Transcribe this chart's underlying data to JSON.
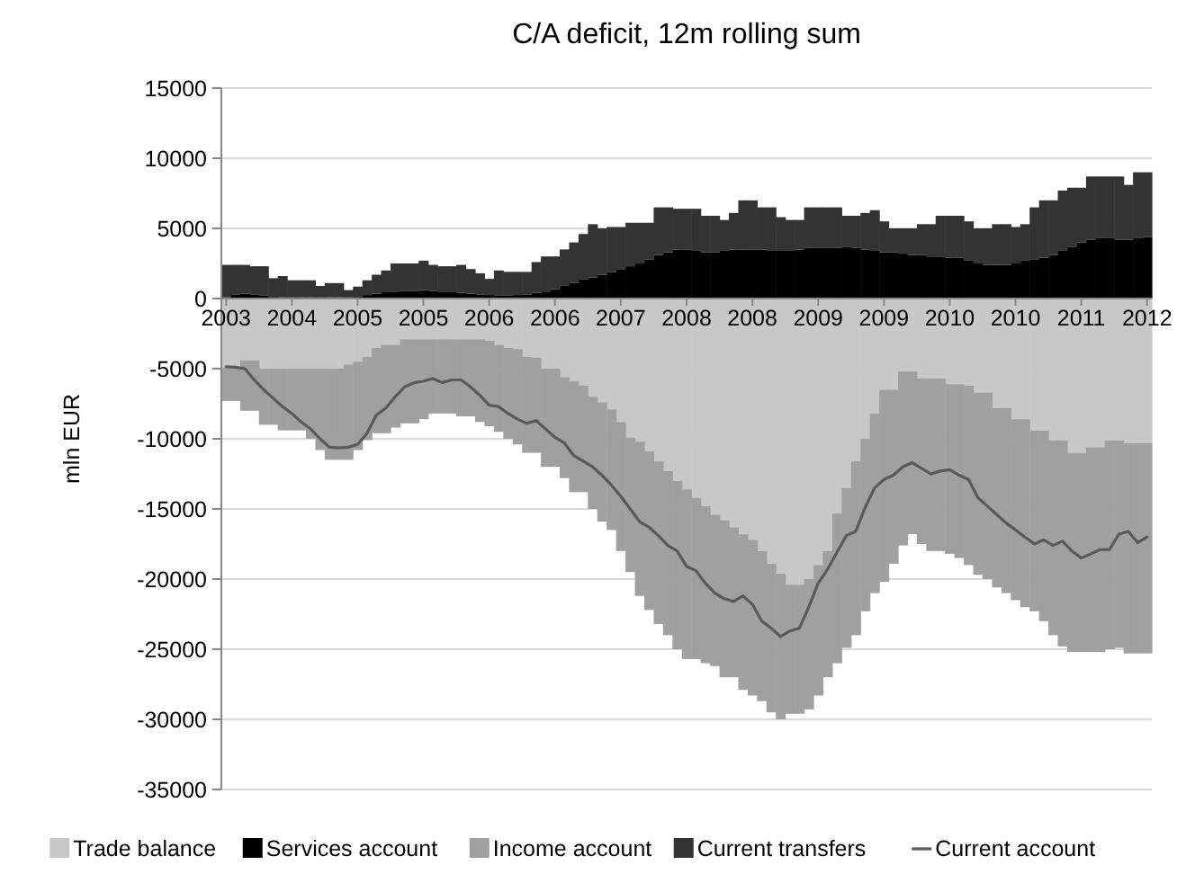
{
  "chart_data": {
    "type": "bar",
    "title": "C/A deficit, 12m rolling sum",
    "ylabel": "mln EUR",
    "stacked": true,
    "grid": "y",
    "legend": "bottom",
    "ylim": [
      -35000,
      15000
    ],
    "yticks": [
      -35000,
      -30000,
      -25000,
      -20000,
      -15000,
      -10000,
      -5000,
      0,
      5000,
      10000,
      15000
    ],
    "categories": [
      "2003",
      null,
      null,
      null,
      null,
      null,
      null,
      "2004",
      null,
      null,
      null,
      null,
      null,
      null,
      "2005",
      null,
      null,
      null,
      null,
      null,
      null,
      "2005",
      null,
      null,
      null,
      null,
      null,
      null,
      "2006",
      null,
      null,
      null,
      null,
      null,
      null,
      "2006",
      null,
      null,
      null,
      null,
      null,
      null,
      "2007",
      null,
      null,
      null,
      null,
      null,
      null,
      "2008",
      null,
      null,
      null,
      null,
      null,
      null,
      "2008",
      null,
      null,
      null,
      null,
      null,
      null,
      "2009",
      null,
      null,
      null,
      null,
      null,
      null,
      "2009",
      null,
      null,
      null,
      null,
      null,
      null,
      "2010",
      null,
      null,
      null,
      null,
      null,
      null,
      "2010",
      null,
      null,
      null,
      null,
      null,
      null,
      "2011",
      null,
      null,
      null,
      null,
      null,
      null,
      "2012"
    ],
    "series": [
      {
        "name": "Trade balance",
        "color": "#c8c8c8",
        "values": [
          -4900,
          -4900,
          -4400,
          -4400,
          -5000,
          -5000,
          -5000,
          -5000,
          -5000,
          -5000,
          -5000,
          -5000,
          -5000,
          -4700,
          -4500,
          -4150,
          -3500,
          -3300,
          -3300,
          -2900,
          -2900,
          -2900,
          -2900,
          -2900,
          -2900,
          -2900,
          -2900,
          -2900,
          -3000,
          -3300,
          -3500,
          -3600,
          -4150,
          -4200,
          -5000,
          -5000,
          -5600,
          -5900,
          -6200,
          -7000,
          -7400,
          -7900,
          -8800,
          -9900,
          -10200,
          -10900,
          -11600,
          -12300,
          -13000,
          -13600,
          -14200,
          -14800,
          -15400,
          -15800,
          -16300,
          -16800,
          -17200,
          -18000,
          -18900,
          -19600,
          -20400,
          -20400,
          -20000,
          -19000,
          -18000,
          -15300,
          -13500,
          -11600,
          -10000,
          -8200,
          -6500,
          -6500,
          -5200,
          -5200,
          -5700,
          -5700,
          -5700,
          -6100,
          -6100,
          -6200,
          -6700,
          -6700,
          -7800,
          -7800,
          -8600,
          -8600,
          -9400,
          -9400,
          -10100,
          -10100,
          -11000,
          -11000,
          -10600,
          -10600,
          -10100,
          -10100,
          -10300,
          -10300,
          -10300
        ]
      },
      {
        "name": "Services account",
        "color": "#000000",
        "values": [
          100,
          300,
          350,
          300,
          200,
          null,
          100,
          100,
          100,
          100,
          100,
          100,
          100,
          100,
          null,
          250,
          350,
          450,
          500,
          550,
          550,
          600,
          550,
          500,
          450,
          400,
          350,
          300,
          250,
          200,
          200,
          250,
          300,
          400,
          500,
          650,
          900,
          1100,
          1350,
          1500,
          1700,
          1900,
          2100,
          2300,
          2550,
          2800,
          3100,
          3300,
          3500,
          3500,
          3400,
          3300,
          3300,
          3400,
          3500,
          3500,
          3500,
          3500,
          3400,
          3400,
          3400,
          3500,
          3600,
          3600,
          3600,
          3600,
          3700,
          3600,
          3500,
          3400,
          3300,
          3300,
          3200,
          3100,
          3100,
          3000,
          3000,
          2900,
          2900,
          2700,
          2500,
          2400,
          2400,
          2400,
          2500,
          2700,
          2800,
          2900,
          3100,
          3400,
          3700,
          4000,
          4200,
          4300,
          4300,
          4200,
          4200,
          4300,
          4400
        ]
      },
      {
        "name": "Income account",
        "color": "#a0a0a0",
        "values": [
          -2400,
          -2400,
          -3600,
          -3600,
          -4000,
          -4000,
          -4400,
          -4400,
          -4400,
          -5000,
          -5800,
          -6500,
          -6500,
          -6800,
          -6300,
          -5950,
          -6100,
          -6300,
          -5900,
          -6000,
          -6000,
          -5700,
          -5300,
          -5300,
          -5300,
          -5500,
          -5500,
          -5900,
          -6100,
          -6200,
          -6500,
          -6800,
          -6850,
          -6800,
          -7000,
          -7000,
          -7200,
          -7900,
          -7600,
          -8000,
          -8500,
          -8600,
          -9200,
          -9600,
          -11000,
          -11300,
          -11600,
          -11700,
          -12000,
          -12100,
          -11500,
          -11200,
          -10800,
          -11200,
          -10700,
          -11100,
          -11100,
          -10700,
          -10600,
          -10400,
          -9200,
          -9200,
          -9300,
          -9300,
          -9000,
          -10700,
          -11400,
          -12400,
          -12300,
          -12800,
          -13700,
          -12400,
          -12400,
          -11600,
          -11800,
          -12300,
          -12300,
          -12100,
          -12400,
          -12800,
          -13000,
          -13300,
          -12800,
          -13200,
          -12900,
          -13400,
          -12900,
          -13600,
          -13900,
          -14700,
          -14200,
          -14200,
          -14600,
          -14600,
          -14900,
          -14800,
          -15000,
          -15000,
          -15000
        ]
      },
      {
        "name": "Current transfers",
        "color": "#333333",
        "values": [
          2300,
          2100,
          2050,
          2000,
          2100,
          1450,
          1500,
          1200,
          1200,
          1200,
          800,
          1000,
          1000,
          500,
          850,
          1050,
          1350,
          1550,
          2000,
          1950,
          1950,
          2100,
          1850,
          1800,
          1850,
          2000,
          1750,
          1500,
          1150,
          1800,
          1700,
          1650,
          1600,
          2200,
          2500,
          2350,
          2600,
          2900,
          3250,
          3800,
          3300,
          3200,
          3000,
          3100,
          2850,
          2600,
          3400,
          3200,
          2900,
          2900,
          3000,
          2600,
          2600,
          2200,
          2600,
          3500,
          3500,
          3000,
          3100,
          2400,
          2200,
          2100,
          2900,
          2900,
          2900,
          2900,
          2200,
          2300,
          2600,
          2900,
          2200,
          1700,
          1800,
          1900,
          2200,
          2300,
          2900,
          3000,
          3000,
          2800,
          2500,
          2600,
          2900,
          2900,
          2600,
          2600,
          3700,
          4100,
          3900,
          4300,
          4200,
          3900,
          4500,
          4400,
          4400,
          4500,
          3900,
          4700,
          4600
        ]
      },
      {
        "name": "Current account",
        "type": "line",
        "color": "#5a5a5a",
        "values": [
          -4870,
          -4900,
          -5000,
          -5800,
          -6500,
          -7100,
          -7700,
          -8200,
          -8800,
          -9300,
          -10000,
          -10600,
          -10650,
          -10600,
          -10400,
          -9600,
          -8300,
          -7800,
          -7000,
          -6300,
          -6000,
          -5900,
          -5700,
          -6000,
          -5800,
          -5800,
          -6300,
          -6900,
          -7600,
          -7700,
          -8200,
          -8600,
          -8900,
          -8700,
          -9300,
          -9900,
          -10300,
          -11200,
          -11600,
          -12000,
          -12600,
          -13300,
          -14100,
          -15000,
          -15900,
          -16300,
          -16900,
          -17600,
          -18000,
          -19100,
          -19400,
          -20300,
          -21000,
          -21400,
          -21600,
          -21200,
          -21800,
          -23000,
          -23500,
          -24100,
          -23700,
          -23500,
          -22000,
          -20300,
          -19300,
          -18100,
          -16900,
          -16600,
          -14900,
          -13500,
          -12900,
          -12600,
          -12000,
          -11700,
          -12100,
          -12500,
          -12300,
          -12200,
          -12600,
          -12900,
          -14200,
          -14800,
          -15400,
          -16000,
          -16500,
          -17000,
          -17500,
          -17200,
          -17600,
          -17300,
          -18000,
          -18500,
          -18200,
          -17900,
          -17900,
          -16800,
          -16600,
          -17400,
          -17000
        ]
      }
    ]
  }
}
